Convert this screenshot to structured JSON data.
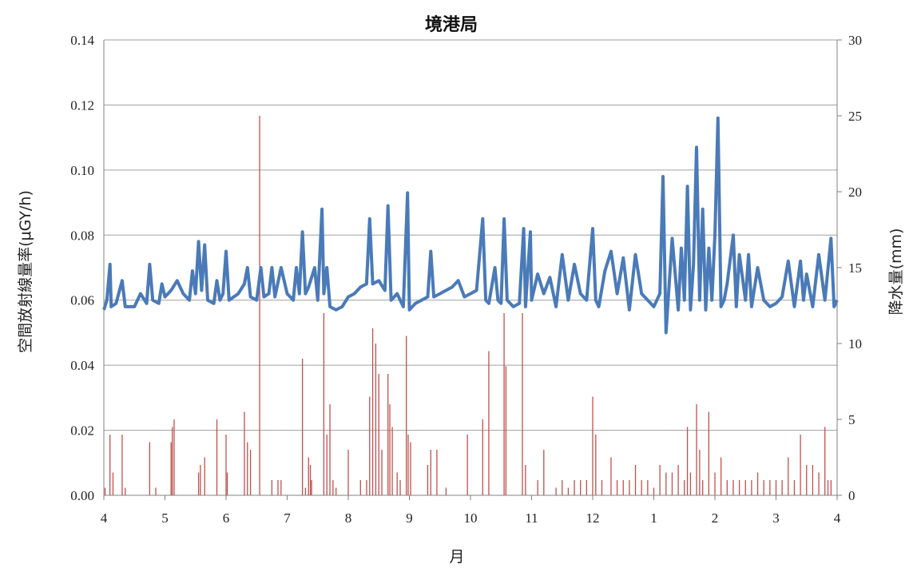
{
  "chart_data": {
    "type": "line",
    "title": "境港局",
    "xlabel": "月",
    "ylabel_left": "空間放射線量率(μGY/h)",
    "ylabel_right": "降水量(mm)",
    "x_ticks": [
      "4",
      "5",
      "6",
      "7",
      "8",
      "9",
      "10",
      "11",
      "12",
      "1",
      "2",
      "3",
      "4"
    ],
    "y_left_ticks": [
      "0.00",
      "0.02",
      "0.04",
      "0.06",
      "0.08",
      "0.10",
      "0.12",
      "0.14"
    ],
    "y_right_ticks": [
      "0",
      "5",
      "10",
      "15",
      "20",
      "25",
      "30"
    ],
    "y_left_lim": [
      0,
      0.14
    ],
    "y_right_lim": [
      0,
      30
    ],
    "grid": true,
    "series": [
      {
        "axis": "left",
        "style": "line",
        "color": "#4a7ab8",
        "points": [
          [
            0.0,
            0.057
          ],
          [
            0.05,
            0.06
          ],
          [
            0.1,
            0.071
          ],
          [
            0.12,
            0.058
          ],
          [
            0.2,
            0.059
          ],
          [
            0.3,
            0.066
          ],
          [
            0.35,
            0.058
          ],
          [
            0.5,
            0.058
          ],
          [
            0.6,
            0.062
          ],
          [
            0.7,
            0.059
          ],
          [
            0.75,
            0.071
          ],
          [
            0.8,
            0.06
          ],
          [
            0.9,
            0.059
          ],
          [
            0.95,
            0.065
          ],
          [
            1.0,
            0.061
          ],
          [
            1.1,
            0.063
          ],
          [
            1.2,
            0.066
          ],
          [
            1.3,
            0.062
          ],
          [
            1.4,
            0.06
          ],
          [
            1.45,
            0.069
          ],
          [
            1.5,
            0.062
          ],
          [
            1.55,
            0.078
          ],
          [
            1.6,
            0.063
          ],
          [
            1.65,
            0.077
          ],
          [
            1.7,
            0.06
          ],
          [
            1.8,
            0.059
          ],
          [
            1.85,
            0.066
          ],
          [
            1.9,
            0.06
          ],
          [
            1.95,
            0.062
          ],
          [
            2.0,
            0.075
          ],
          [
            2.05,
            0.06
          ],
          [
            2.2,
            0.062
          ],
          [
            2.3,
            0.065
          ],
          [
            2.35,
            0.07
          ],
          [
            2.4,
            0.061
          ],
          [
            2.5,
            0.06
          ],
          [
            2.57,
            0.07
          ],
          [
            2.62,
            0.061
          ],
          [
            2.7,
            0.062
          ],
          [
            2.75,
            0.07
          ],
          [
            2.8,
            0.061
          ],
          [
            2.9,
            0.07
          ],
          [
            3.0,
            0.062
          ],
          [
            3.1,
            0.06
          ],
          [
            3.15,
            0.07
          ],
          [
            3.2,
            0.062
          ],
          [
            3.25,
            0.081
          ],
          [
            3.3,
            0.062
          ],
          [
            3.35,
            0.064
          ],
          [
            3.45,
            0.07
          ],
          [
            3.5,
            0.06
          ],
          [
            3.57,
            0.088
          ],
          [
            3.6,
            0.062
          ],
          [
            3.65,
            0.07
          ],
          [
            3.7,
            0.058
          ],
          [
            3.8,
            0.057
          ],
          [
            3.9,
            0.058
          ],
          [
            4.0,
            0.061
          ],
          [
            4.1,
            0.062
          ],
          [
            4.2,
            0.064
          ],
          [
            4.3,
            0.065
          ],
          [
            4.35,
            0.085
          ],
          [
            4.4,
            0.065
          ],
          [
            4.5,
            0.066
          ],
          [
            4.6,
            0.063
          ],
          [
            4.65,
            0.089
          ],
          [
            4.7,
            0.06
          ],
          [
            4.8,
            0.062
          ],
          [
            4.9,
            0.058
          ],
          [
            4.97,
            0.093
          ],
          [
            5.0,
            0.057
          ],
          [
            5.1,
            0.059
          ],
          [
            5.2,
            0.06
          ],
          [
            5.3,
            0.061
          ],
          [
            5.35,
            0.075
          ],
          [
            5.4,
            0.061
          ],
          [
            5.5,
            0.062
          ],
          [
            5.6,
            0.063
          ],
          [
            5.7,
            0.064
          ],
          [
            5.8,
            0.066
          ],
          [
            5.9,
            0.061
          ],
          [
            6.0,
            0.062
          ],
          [
            6.1,
            0.063
          ],
          [
            6.2,
            0.085
          ],
          [
            6.25,
            0.06
          ],
          [
            6.3,
            0.059
          ],
          [
            6.4,
            0.07
          ],
          [
            6.45,
            0.06
          ],
          [
            6.5,
            0.059
          ],
          [
            6.55,
            0.085
          ],
          [
            6.6,
            0.06
          ],
          [
            6.7,
            0.058
          ],
          [
            6.8,
            0.059
          ],
          [
            6.87,
            0.082
          ],
          [
            6.9,
            0.058
          ],
          [
            6.98,
            0.081
          ],
          [
            7.0,
            0.06
          ],
          [
            7.1,
            0.068
          ],
          [
            7.2,
            0.062
          ],
          [
            7.3,
            0.067
          ],
          [
            7.4,
            0.058
          ],
          [
            7.5,
            0.074
          ],
          [
            7.6,
            0.06
          ],
          [
            7.7,
            0.071
          ],
          [
            7.8,
            0.062
          ],
          [
            7.9,
            0.06
          ],
          [
            8.0,
            0.082
          ],
          [
            8.05,
            0.06
          ],
          [
            8.1,
            0.058
          ],
          [
            8.2,
            0.069
          ],
          [
            8.3,
            0.075
          ],
          [
            8.4,
            0.062
          ],
          [
            8.5,
            0.073
          ],
          [
            8.6,
            0.057
          ],
          [
            8.7,
            0.074
          ],
          [
            8.8,
            0.062
          ],
          [
            8.9,
            0.06
          ],
          [
            9.0,
            0.058
          ],
          [
            9.1,
            0.062
          ],
          [
            9.15,
            0.098
          ],
          [
            9.2,
            0.05
          ],
          [
            9.3,
            0.079
          ],
          [
            9.4,
            0.057
          ],
          [
            9.45,
            0.076
          ],
          [
            9.5,
            0.06
          ],
          [
            9.55,
            0.095
          ],
          [
            9.6,
            0.057
          ],
          [
            9.65,
            0.071
          ],
          [
            9.7,
            0.107
          ],
          [
            9.75,
            0.06
          ],
          [
            9.8,
            0.088
          ],
          [
            9.85,
            0.057
          ],
          [
            9.9,
            0.076
          ],
          [
            9.95,
            0.06
          ],
          [
            10.0,
            0.08
          ],
          [
            10.05,
            0.116
          ],
          [
            10.1,
            0.058
          ],
          [
            10.15,
            0.06
          ],
          [
            10.2,
            0.065
          ],
          [
            10.3,
            0.08
          ],
          [
            10.35,
            0.058
          ],
          [
            10.4,
            0.074
          ],
          [
            10.5,
            0.06
          ],
          [
            10.55,
            0.074
          ],
          [
            10.6,
            0.058
          ],
          [
            10.7,
            0.07
          ],
          [
            10.8,
            0.06
          ],
          [
            10.9,
            0.058
          ],
          [
            11.0,
            0.059
          ],
          [
            11.1,
            0.061
          ],
          [
            11.2,
            0.072
          ],
          [
            11.3,
            0.058
          ],
          [
            11.4,
            0.072
          ],
          [
            11.45,
            0.06
          ],
          [
            11.5,
            0.068
          ],
          [
            11.6,
            0.058
          ],
          [
            11.7,
            0.074
          ],
          [
            11.8,
            0.06
          ],
          [
            11.9,
            0.079
          ],
          [
            11.95,
            0.058
          ],
          [
            12.0,
            0.06
          ]
        ]
      },
      {
        "axis": "right",
        "style": "bars",
        "color": "#c0504d",
        "points": [
          [
            0.02,
            0.5
          ],
          [
            0.1,
            4.0
          ],
          [
            0.15,
            1.5
          ],
          [
            0.3,
            4.0
          ],
          [
            0.35,
            0.5
          ],
          [
            0.75,
            3.5
          ],
          [
            0.85,
            0.5
          ],
          [
            1.1,
            3.5
          ],
          [
            1.12,
            4.5
          ],
          [
            1.15,
            5.0
          ],
          [
            1.55,
            1.5
          ],
          [
            1.58,
            2.0
          ],
          [
            1.65,
            2.5
          ],
          [
            1.85,
            5.0
          ],
          [
            2.0,
            4.0
          ],
          [
            2.02,
            1.5
          ],
          [
            2.3,
            5.5
          ],
          [
            2.35,
            3.5
          ],
          [
            2.4,
            3.0
          ],
          [
            2.55,
            25.0
          ],
          [
            2.75,
            1.0
          ],
          [
            2.85,
            1.0
          ],
          [
            2.9,
            1.0
          ],
          [
            3.25,
            9.0
          ],
          [
            3.3,
            0.5
          ],
          [
            3.35,
            2.5
          ],
          [
            3.38,
            2.0
          ],
          [
            3.4,
            1.0
          ],
          [
            3.6,
            12.0
          ],
          [
            3.65,
            4.0
          ],
          [
            3.7,
            6.0
          ],
          [
            3.75,
            1.0
          ],
          [
            3.8,
            0.5
          ],
          [
            4.0,
            3.0
          ],
          [
            4.2,
            1.0
          ],
          [
            4.3,
            1.0
          ],
          [
            4.35,
            6.5
          ],
          [
            4.4,
            11.0
          ],
          [
            4.45,
            10.0
          ],
          [
            4.5,
            8.0
          ],
          [
            4.55,
            3.0
          ],
          [
            4.65,
            8.0
          ],
          [
            4.68,
            6.0
          ],
          [
            4.72,
            4.5
          ],
          [
            4.8,
            1.5
          ],
          [
            4.85,
            1.0
          ],
          [
            4.95,
            10.5
          ],
          [
            4.98,
            4.0
          ],
          [
            5.02,
            3.5
          ],
          [
            5.3,
            2.0
          ],
          [
            5.35,
            3.0
          ],
          [
            5.45,
            3.0
          ],
          [
            5.6,
            0.5
          ],
          [
            5.95,
            4.0
          ],
          [
            6.2,
            5.0
          ],
          [
            6.3,
            9.5
          ],
          [
            6.55,
            12.0
          ],
          [
            6.58,
            8.5
          ],
          [
            6.85,
            12.0
          ],
          [
            6.9,
            2.0
          ],
          [
            7.1,
            1.0
          ],
          [
            7.2,
            3.0
          ],
          [
            7.4,
            0.5
          ],
          [
            7.5,
            1.0
          ],
          [
            7.6,
            0.5
          ],
          [
            7.7,
            1.0
          ],
          [
            7.8,
            1.0
          ],
          [
            7.9,
            1.0
          ],
          [
            8.0,
            6.5
          ],
          [
            8.05,
            4.0
          ],
          [
            8.15,
            1.0
          ],
          [
            8.3,
            2.5
          ],
          [
            8.4,
            1.0
          ],
          [
            8.5,
            1.0
          ],
          [
            8.6,
            1.0
          ],
          [
            8.7,
            2.0
          ],
          [
            8.8,
            1.0
          ],
          [
            8.9,
            1.0
          ],
          [
            9.0,
            0.5
          ],
          [
            9.1,
            2.0
          ],
          [
            9.2,
            1.5
          ],
          [
            9.3,
            1.5
          ],
          [
            9.4,
            2.0
          ],
          [
            9.5,
            1.0
          ],
          [
            9.55,
            4.5
          ],
          [
            9.6,
            1.5
          ],
          [
            9.7,
            6.0
          ],
          [
            9.75,
            3.0
          ],
          [
            9.8,
            1.0
          ],
          [
            9.9,
            5.5
          ],
          [
            10.0,
            1.5
          ],
          [
            10.1,
            2.5
          ],
          [
            10.2,
            1.0
          ],
          [
            10.3,
            1.0
          ],
          [
            10.4,
            1.0
          ],
          [
            10.5,
            1.0
          ],
          [
            10.6,
            1.0
          ],
          [
            10.7,
            1.5
          ],
          [
            10.8,
            1.0
          ],
          [
            10.9,
            1.0
          ],
          [
            11.0,
            1.0
          ],
          [
            11.1,
            1.0
          ],
          [
            11.2,
            2.5
          ],
          [
            11.3,
            1.0
          ],
          [
            11.4,
            4.0
          ],
          [
            11.5,
            2.0
          ],
          [
            11.6,
            2.0
          ],
          [
            11.7,
            1.5
          ],
          [
            11.8,
            4.5
          ],
          [
            11.85,
            1.0
          ],
          [
            11.9,
            1.0
          ]
        ]
      }
    ]
  }
}
